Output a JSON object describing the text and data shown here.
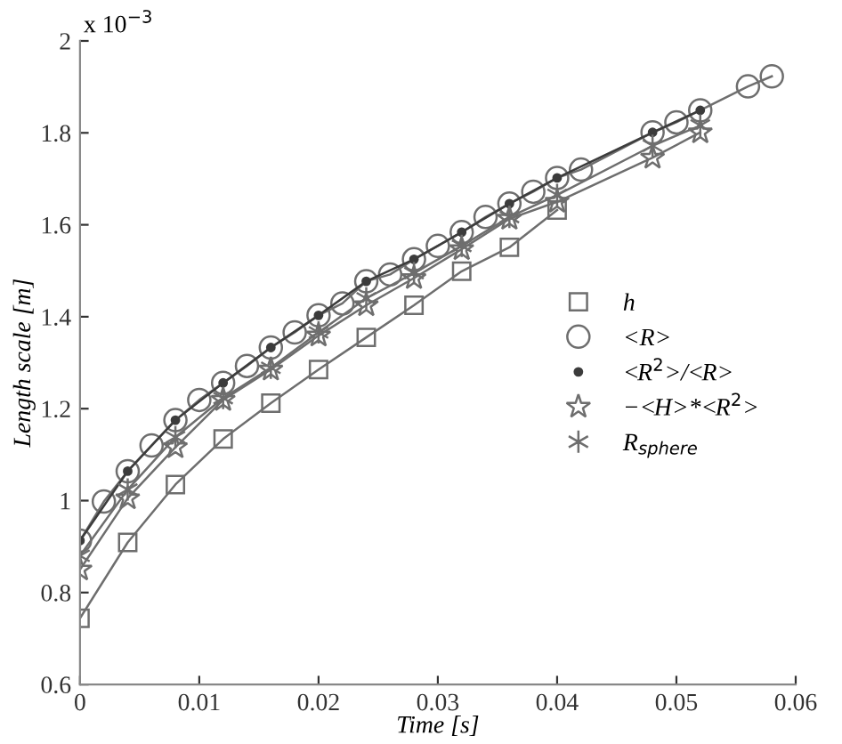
{
  "chart_data": {
    "type": "line",
    "xlabel": "Time [s]",
    "ylabel": "Length scale [m]",
    "annotations": [
      "x 10$^{−3}$"
    ],
    "xlim": [
      0,
      0.06
    ],
    "xticks": [
      0,
      0.01,
      0.02,
      0.03,
      0.04,
      0.05,
      0.06
    ],
    "ylim": [
      0.6,
      2
    ],
    "yticks": [
      0.6,
      0.8,
      1,
      1.2,
      1.4,
      1.6,
      1.8,
      2
    ],
    "grid": false,
    "legend": "right",
    "line_style": "solid",
    "series": [
      {
        "name": "h",
        "color": "#6e6e6e",
        "marker": "square",
        "x": [
          0,
          0.004,
          0.008,
          0.012,
          0.016,
          0.02,
          0.024,
          0.028,
          0.032,
          0.036,
          0.04
        ],
        "values": [
          0.744,
          0.909,
          1.035,
          1.134,
          1.212,
          1.285,
          1.355,
          1.425,
          1.499,
          1.551,
          1.632
        ]
      },
      {
        "name": "<R>",
        "color": "#6e6e6e",
        "marker": "circle",
        "x": [
          0,
          0.002,
          0.004,
          0.006,
          0.008,
          0.01,
          0.012,
          0.014,
          0.016,
          0.018,
          0.02,
          0.022,
          0.024,
          0.026,
          0.028,
          0.03,
          0.032,
          0.034,
          0.036,
          0.038,
          0.04,
          0.042,
          0.048,
          0.05,
          0.052,
          0.056,
          0.058
        ],
        "values": [
          0.913,
          0.998,
          1.064,
          1.12,
          1.175,
          1.219,
          1.256,
          1.293,
          1.333,
          1.366,
          1.403,
          1.429,
          1.477,
          1.492,
          1.525,
          1.554,
          1.584,
          1.617,
          1.646,
          1.672,
          1.702,
          1.72,
          1.801,
          1.823,
          1.849,
          1.901,
          1.923
        ]
      },
      {
        "name": "<R$^{2}$>/<R>",
        "color": "#3c3c3c",
        "marker": "point",
        "x": [
          0,
          0.004,
          0.008,
          0.012,
          0.016,
          0.02,
          0.024,
          0.028,
          0.032,
          0.036,
          0.04,
          0.048,
          0.052
        ],
        "values": [
          0.913,
          1.064,
          1.175,
          1.256,
          1.333,
          1.403,
          1.477,
          1.525,
          1.584,
          1.646,
          1.702,
          1.801,
          1.849
        ]
      },
      {
        "name": "−<H>*<R$^{2}$>",
        "color": "#6e6e6e",
        "marker": "star",
        "x": [
          0,
          0.004,
          0.008,
          0.012,
          0.016,
          0.02,
          0.024,
          0.028,
          0.032,
          0.036,
          0.04,
          0.048,
          0.052
        ],
        "values": [
          0.85,
          1.005,
          1.116,
          1.219,
          1.285,
          1.359,
          1.425,
          1.484,
          1.547,
          1.613,
          1.65,
          1.746,
          1.801
        ]
      },
      {
        "name": "R$_{sphere}$",
        "color": "#6e6e6e",
        "marker": "cross",
        "x": [
          0,
          0.004,
          0.008,
          0.012,
          0.016,
          0.02,
          0.024,
          0.028,
          0.032,
          0.036,
          0.04,
          0.048,
          0.052
        ],
        "values": [
          0.88,
          1.024,
          1.138,
          1.223,
          1.289,
          1.366,
          1.44,
          1.495,
          1.554,
          1.617,
          1.665,
          1.772,
          1.816
        ]
      }
    ]
  }
}
